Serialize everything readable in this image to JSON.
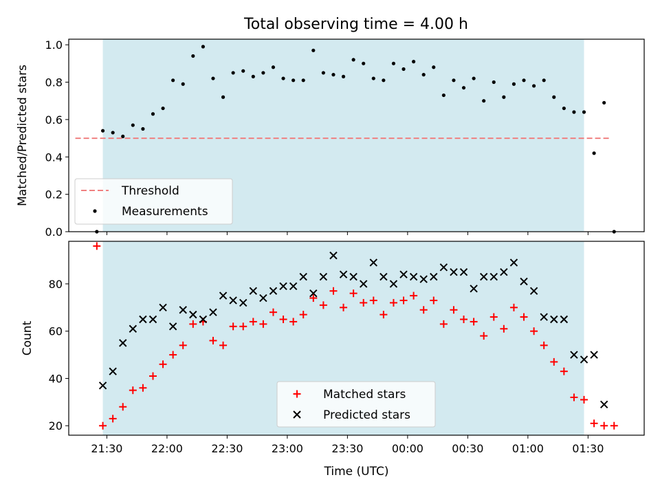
{
  "figure": {
    "title": "Total observing time = 4.00 h",
    "shade_color": "#d3eaf0",
    "shade_start": "21:28",
    "shade_end": "01:28"
  },
  "chart_data": [
    {
      "type": "scatter",
      "ylabel": "Matched/Predicted stars",
      "xlim": [
        "21:11",
        "01:58"
      ],
      "ylim": [
        0,
        1.03
      ],
      "yticks": [
        "0.0",
        "0.2",
        "0.4",
        "0.6",
        "0.8",
        "1.0"
      ],
      "legend": {
        "placement": "lower-left",
        "threshold_label": "Threshold",
        "measurements_label": "Measurements"
      },
      "threshold": {
        "y": 0.5,
        "color": "#f08080",
        "style": "dashed"
      },
      "measurements": {
        "color": "#000000",
        "x": [
          "21:25",
          "21:28",
          "21:33",
          "21:38",
          "21:43",
          "21:48",
          "21:53",
          "21:58",
          "22:03",
          "22:08",
          "22:13",
          "22:18",
          "22:23",
          "22:28",
          "22:33",
          "22:38",
          "22:43",
          "22:48",
          "22:53",
          "22:58",
          "23:03",
          "23:08",
          "23:13",
          "23:18",
          "23:23",
          "23:28",
          "23:33",
          "23:38",
          "23:43",
          "23:48",
          "23:53",
          "23:58",
          "00:03",
          "00:08",
          "00:13",
          "00:18",
          "00:23",
          "00:28",
          "00:33",
          "00:38",
          "00:43",
          "00:48",
          "00:53",
          "00:58",
          "01:03",
          "01:08",
          "01:13",
          "01:18",
          "01:23",
          "01:28",
          "01:33",
          "01:38",
          "01:43"
        ],
        "y": [
          0.0,
          0.54,
          0.53,
          0.51,
          0.57,
          0.55,
          0.63,
          0.66,
          0.81,
          0.79,
          0.94,
          0.99,
          0.82,
          0.72,
          0.85,
          0.86,
          0.83,
          0.85,
          0.88,
          0.82,
          0.81,
          0.81,
          0.97,
          0.85,
          0.84,
          0.83,
          0.92,
          0.9,
          0.82,
          0.81,
          0.9,
          0.87,
          0.91,
          0.84,
          0.88,
          0.73,
          0.81,
          0.77,
          0.82,
          0.7,
          0.8,
          0.72,
          0.79,
          0.81,
          0.78,
          0.81,
          0.72,
          0.66,
          0.64,
          0.64,
          0.42,
          0.69,
          0.0
        ]
      }
    },
    {
      "type": "scatter",
      "xlabel": "Time (UTC)",
      "ylabel": "Count",
      "xlim": [
        "21:11",
        "01:58"
      ],
      "ylim": [
        16,
        98
      ],
      "yticks": [
        "20",
        "40",
        "60",
        "80"
      ],
      "xticks": [
        "21:30",
        "22:00",
        "22:30",
        "23:00",
        "23:30",
        "00:00",
        "00:30",
        "01:00",
        "01:30"
      ],
      "legend": {
        "placement": "lower-center"
      },
      "series": [
        {
          "name": "Matched stars",
          "marker": "+",
          "color": "#ff0000",
          "x": [
            "21:25",
            "21:28",
            "21:33",
            "21:38",
            "21:43",
            "21:48",
            "21:53",
            "21:58",
            "22:03",
            "22:08",
            "22:13",
            "22:18",
            "22:23",
            "22:28",
            "22:33",
            "22:38",
            "22:43",
            "22:48",
            "22:53",
            "22:58",
            "23:03",
            "23:08",
            "23:13",
            "23:18",
            "23:23",
            "23:28",
            "23:33",
            "23:38",
            "23:43",
            "23:48",
            "23:53",
            "23:58",
            "00:03",
            "00:08",
            "00:13",
            "00:18",
            "00:23",
            "00:28",
            "00:33",
            "00:38",
            "00:43",
            "00:48",
            "00:53",
            "00:58",
            "01:03",
            "01:08",
            "01:13",
            "01:18",
            "01:23",
            "01:28",
            "01:33",
            "01:38",
            "01:43"
          ],
          "values": [
            96,
            20,
            23,
            28,
            35,
            36,
            41,
            46,
            50,
            54,
            63,
            64,
            56,
            54,
            62,
            62,
            64,
            63,
            68,
            65,
            64,
            67,
            74,
            71,
            77,
            70,
            76,
            72,
            73,
            67,
            72,
            73,
            75,
            69,
            73,
            63,
            69,
            65,
            64,
            58,
            66,
            61,
            70,
            66,
            60,
            54,
            47,
            43,
            32,
            31,
            21,
            20,
            20
          ]
        },
        {
          "name": "Predicted stars",
          "marker": "x",
          "color": "#000000",
          "x": [
            "21:28",
            "21:33",
            "21:38",
            "21:43",
            "21:48",
            "21:53",
            "21:58",
            "22:03",
            "22:08",
            "22:13",
            "22:18",
            "22:23",
            "22:28",
            "22:33",
            "22:38",
            "22:43",
            "22:48",
            "22:53",
            "22:58",
            "23:03",
            "23:08",
            "23:13",
            "23:18",
            "23:23",
            "23:28",
            "23:33",
            "23:38",
            "23:43",
            "23:48",
            "23:53",
            "23:58",
            "00:03",
            "00:08",
            "00:13",
            "00:18",
            "00:23",
            "00:28",
            "00:33",
            "00:38",
            "00:43",
            "00:48",
            "00:53",
            "00:58",
            "01:03",
            "01:08",
            "01:13",
            "01:18",
            "01:23",
            "01:28",
            "01:33",
            "01:38"
          ],
          "values": [
            37,
            43,
            55,
            61,
            65,
            65,
            70,
            62,
            69,
            67,
            65,
            68,
            75,
            73,
            72,
            77,
            74,
            77,
            79,
            79,
            83,
            76,
            83,
            92,
            84,
            83,
            80,
            89,
            83,
            80,
            84,
            83,
            82,
            83,
            87,
            85,
            85,
            78,
            83,
            83,
            85,
            89,
            81,
            77,
            66,
            65,
            65,
            50,
            48,
            50,
            29
          ]
        }
      ]
    }
  ]
}
